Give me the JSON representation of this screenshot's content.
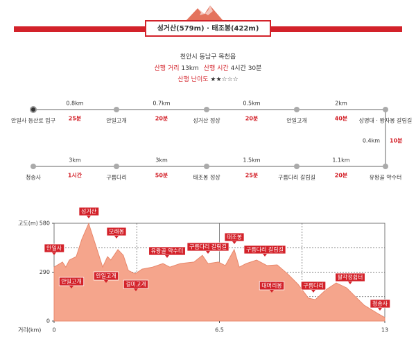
{
  "header": {
    "title": "성거산(579m) · 태조봉(422m)"
  },
  "info": {
    "location": "천안시 동남구 목천읍",
    "distance_label": "산행 거리",
    "distance": "13km",
    "time_label": "산행 시간",
    "time": "4시간 30분",
    "difficulty_label": "산행 난이도",
    "difficulty": "★★☆☆☆"
  },
  "route": {
    "top": {
      "nodes": [
        "안일사 등산로 입구",
        "안일고개",
        "성거산 정상",
        "안일고개",
        "상명대 · 왕자봉 갈림길"
      ],
      "segments": [
        {
          "distance": "0.8km",
          "time": "25분"
        },
        {
          "distance": "0.7km",
          "time": "20분"
        },
        {
          "distance": "0.5km",
          "time": "20분"
        },
        {
          "distance": "2km",
          "time": "40분"
        }
      ]
    },
    "right": {
      "distance": "0.4km",
      "time": "10분"
    },
    "bottom": {
      "nodes": [
        "청송사",
        "구름다리",
        "태조봉 정상",
        "구름다리 갈림길",
        "유왕골 약수터"
      ],
      "segments": [
        {
          "distance": "3km",
          "time": "1시간"
        },
        {
          "distance": "3km",
          "time": "50분"
        },
        {
          "distance": "1.5km",
          "time": "25분"
        },
        {
          "distance": "1.1km",
          "time": "20분"
        }
      ]
    }
  },
  "chart_data": {
    "type": "area",
    "ylabel": "고도(m)",
    "xlabel": "거리(km)",
    "color": "#f5a58c",
    "line_color": "#e8876b",
    "x": [
      0,
      0.33,
      0.46,
      0.6,
      0.87,
      1.09,
      1.36,
      1.69,
      1.91,
      2.1,
      2.23,
      2.51,
      2.72,
      2.92,
      3.19,
      3.46,
      3.87,
      4.28,
      4.55,
      4.96,
      5.5,
      5.83,
      6.05,
      6.46,
      6.73,
      7.08,
      7.28,
      7.55,
      7.96,
      8.37,
      8.77,
      9.18,
      9.59,
      10.0,
      10.27,
      10.68,
      11.09,
      11.5,
      11.77,
      12.18,
      12.72,
      13
    ],
    "values": [
      320,
      350,
      320,
      362,
      382,
      485,
      579,
      424,
      320,
      382,
      362,
      424,
      390,
      300,
      280,
      308,
      320,
      341,
      320,
      341,
      350,
      390,
      341,
      350,
      329,
      424,
      320,
      341,
      362,
      329,
      333,
      280,
      218,
      136,
      127,
      185,
      226,
      197,
      156,
      95,
      45,
      21
    ],
    "xlim": [
      0,
      13
    ],
    "ylim": [
      0,
      580
    ],
    "xticks": [
      0,
      6.5,
      13
    ],
    "yticks": [
      0,
      290,
      580
    ],
    "annotations": [
      "안일사",
      "안일고개",
      "성거산",
      "안일고개",
      "모래봉",
      "걸미고개",
      "유왕골 약수터",
      "구름다리 갈림길",
      "태조봉",
      "구름다리 갈림길",
      "대머리봉",
      "구름다리",
      "팔각정쉼터",
      "청송사"
    ]
  }
}
